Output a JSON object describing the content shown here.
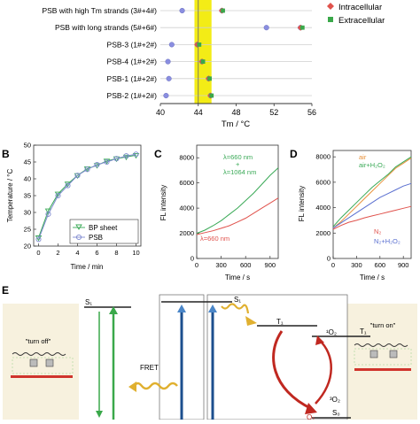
{
  "panelA": {
    "categories": [
      "PSB with high Tm strands (3#+4#)",
      "PSB with long strands (5#+6#)",
      "PSB-3 (1#+2#)",
      "PSB-4 (1#+2#)",
      "PSB-1 (1#+2#)",
      "PSB-2 (1#+2#)"
    ],
    "xticks": [
      "40",
      "44",
      "48",
      "52",
      "56"
    ],
    "xlabel": "Tm / °C",
    "legend": [
      "Intracellular",
      "Extracellular"
    ],
    "colors": {
      "circle": "#8a8ee0",
      "intra": "#e0524c",
      "extra": "#3aa84a",
      "band": "#f3ec16"
    }
  },
  "panelB": {
    "letter": "B",
    "ylabel": "Temperature / °C",
    "xlabel": "Time / min",
    "xticks": [
      "0",
      "2",
      "4",
      "6",
      "8",
      "10"
    ],
    "yticks": [
      "20",
      "25",
      "30",
      "35",
      "40",
      "45",
      "50"
    ],
    "legend": [
      "BP sheet",
      "PSB"
    ]
  },
  "panelC": {
    "letter": "C",
    "ylabel": "FL intensity",
    "xlabel": "Time / s",
    "xticks": [
      "0",
      "300",
      "600",
      "900"
    ],
    "yticks": [
      "0",
      "2000",
      "4000",
      "6000",
      "8000"
    ],
    "label_green_1": "λ=660 nm",
    "label_green_2": "+",
    "label_green_3": "λ=1064 nm",
    "label_red": "λ=660 nm"
  },
  "panelD": {
    "letter": "D",
    "ylabel": "FL intensity",
    "xlabel": "Time / s",
    "xticks": [
      "0",
      "300",
      "600",
      "900"
    ],
    "yticks": [
      "0",
      "2000",
      "4000",
      "6000",
      "8000"
    ],
    "leg_air": "air",
    "leg_air_h2o2": "air+H₂O₂",
    "leg_n2": "N₂",
    "leg_n2_h2o2": "N₂+H₂O₂"
  },
  "panelE": {
    "letter": "E",
    "turn_off": "\"turn off\"",
    "turn_on": "\"turn on\"",
    "fret": "FRET",
    "s1": "S₁",
    "s0": "S₀",
    "t1": "T₁",
    "o2_singlet": "¹O₂",
    "o2_triplet": "³O₂",
    "o2": "O₂"
  },
  "chart_data": [
    {
      "type": "scatter",
      "xlabel": "Tm / °C",
      "xlim": [
        40,
        56
      ],
      "categories": [
        "PSB with high Tm strands (3#+4#)",
        "PSB with long strands (5#+6#)",
        "PSB-3 (1#+2#)",
        "PSB-4 (1#+2#)",
        "PSB-1 (1#+2#)",
        "PSB-2 (1#+2#)"
      ],
      "series": [
        {
          "name": "",
          "values": [
            [
              42.3,
              46.5
            ],
            [
              51.2,
              54.8
            ],
            [
              41.2,
              43.9
            ],
            [
              40.8,
              44.4
            ],
            [
              40.9,
              45.1
            ],
            [
              40.6,
              45.3
            ]
          ]
        },
        {
          "name": "Intracellular",
          "values": [
            46.5,
            54.8,
            43.9,
            44.4,
            45.1,
            45.3
          ]
        },
        {
          "name": "Extracellular",
          "values": [
            46.6,
            55.0,
            44.1,
            44.5,
            45.2,
            45.4
          ]
        }
      ],
      "highlight_band": [
        43.6,
        45.4
      ]
    },
    {
      "type": "line",
      "xlabel": "Time / min",
      "ylabel": "Temperature / °C",
      "xlim": [
        -0.5,
        10.5
      ],
      "ylim": [
        20,
        50
      ],
      "x": [
        0,
        1,
        2,
        3,
        4,
        5,
        6,
        7,
        8,
        9,
        10
      ],
      "series": [
        {
          "name": "BP sheet",
          "values": [
            22.5,
            30.5,
            35.5,
            38.5,
            41.0,
            43.0,
            44.0,
            45.3,
            46.0,
            46.5,
            47.0
          ]
        },
        {
          "name": "PSB",
          "values": [
            22.0,
            29.5,
            35.0,
            38.0,
            41.0,
            42.8,
            44.2,
            45.0,
            46.0,
            46.8,
            47.3
          ]
        }
      ]
    },
    {
      "type": "line",
      "xlabel": "Time / s",
      "ylabel": "FL intensity",
      "xlim": [
        0,
        1000
      ],
      "ylim": [
        0,
        9000
      ],
      "x": [
        0,
        100,
        200,
        300,
        400,
        500,
        600,
        700,
        800,
        900,
        1000
      ],
      "series": [
        {
          "name": "λ=660 nm + λ=1064 nm",
          "values": [
            2000,
            2250,
            2600,
            3000,
            3500,
            4000,
            4600,
            5200,
            5900,
            6600,
            7200
          ]
        },
        {
          "name": "λ=660 nm",
          "values": [
            1900,
            2050,
            2200,
            2400,
            2600,
            2900,
            3200,
            3600,
            4000,
            4400,
            4800
          ]
        }
      ]
    },
    {
      "type": "line",
      "xlabel": "Time / s",
      "ylabel": "FL intensity",
      "xlim": [
        0,
        1000
      ],
      "ylim": [
        0,
        8500
      ],
      "x": [
        0,
        100,
        200,
        300,
        400,
        500,
        600,
        700,
        800,
        900,
        1000
      ],
      "series": [
        {
          "name": "air",
          "values": [
            2400,
            2900,
            3500,
            4100,
            4700,
            5300,
            5900,
            6500,
            7100,
            7500,
            7900
          ]
        },
        {
          "name": "air+H₂O₂",
          "values": [
            2500,
            3200,
            3800,
            4400,
            5000,
            5600,
            6100,
            6600,
            7200,
            7600,
            8000
          ]
        },
        {
          "name": "N₂",
          "values": [
            2300,
            2600,
            2850,
            3000,
            3200,
            3350,
            3500,
            3650,
            3800,
            3950,
            4100
          ]
        },
        {
          "name": "N₂+H₂O₂",
          "values": [
            2400,
            2800,
            3200,
            3600,
            4000,
            4400,
            4800,
            5100,
            5400,
            5700,
            5900
          ]
        }
      ]
    }
  ]
}
